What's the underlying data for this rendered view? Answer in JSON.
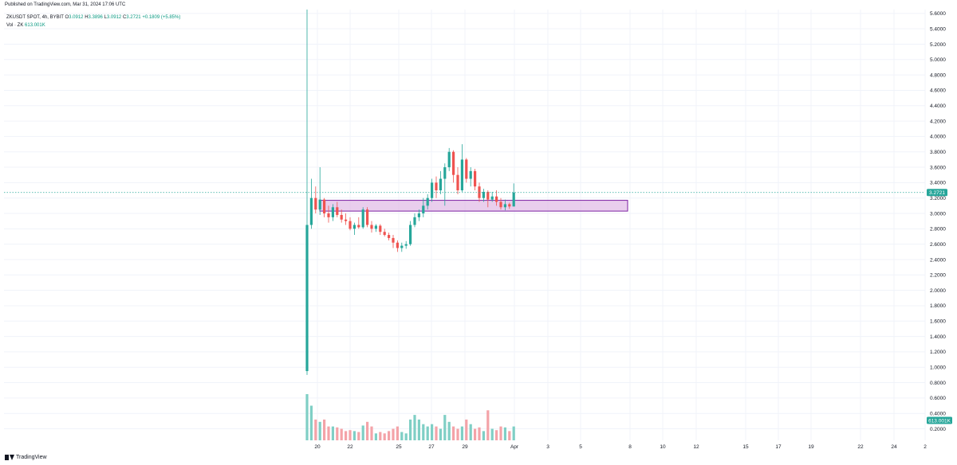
{
  "header": {
    "published": "Published on TradingView.com, Mar 31, 2024 17:06 UTC"
  },
  "legend": {
    "symbol": "ZKUSDT SPOT, 4h, BYBIT",
    "o_label": "O",
    "o_value": "3.0912",
    "h_label": "H",
    "h_value": "3.3896",
    "l_label": "L",
    "l_value": "3.0912",
    "c_label": "C",
    "c_value": "3.2721",
    "change": "+0.1809 (+5.85%)",
    "vol_label": "Vol · ZK",
    "vol_value": "613.001K"
  },
  "footer": {
    "brand": "TradingView"
  },
  "colors": {
    "up": "#26a69a",
    "down": "#ef5350",
    "vol_up": "#7fcfc5",
    "vol_down": "#f4a3a8",
    "zone_fill": "#e1bee7",
    "zone_border": "#7b1fa2",
    "price_line": "#26a69a",
    "grid": "#f0f3fa"
  },
  "chart_data": {
    "type": "candlestick",
    "symbol": "ZKUSDT",
    "timeframe": "4h",
    "yaxis": {
      "ticks": [
        "5.6000",
        "5.4000",
        "5.2000",
        "5.0000",
        "4.8000",
        "4.6000",
        "4.4000",
        "4.2000",
        "4.0000",
        "3.8000",
        "3.6000",
        "3.4000",
        "3.2000",
        "3.0000",
        "2.8000",
        "2.6000",
        "2.4000",
        "2.2000",
        "2.0000",
        "1.8000",
        "1.6000",
        "1.4000",
        "1.2000",
        "1.0000",
        "0.8000",
        "0.6000",
        "0.4000",
        "0.2000"
      ],
      "range": [
        0.05,
        5.65
      ]
    },
    "xaxis": {
      "ticks": [
        "20",
        "22",
        "25",
        "27",
        "29",
        "Apr",
        "3",
        "5",
        "8",
        "10",
        "12",
        "15",
        "17",
        "19",
        "22",
        "24",
        "2"
      ]
    },
    "last_price": {
      "value": 3.2721,
      "label": "3.2721"
    },
    "volume_label": "613.001K",
    "zone": {
      "low": 3.03,
      "high": 3.17
    },
    "candles": [
      {
        "o": 0.95,
        "h": 5.65,
        "l": 0.9,
        "c": 2.85,
        "v": 1.0
      },
      {
        "o": 2.85,
        "h": 3.45,
        "l": 2.8,
        "c": 3.2,
        "v": 0.75
      },
      {
        "o": 3.2,
        "h": 3.35,
        "l": 3.0,
        "c": 3.05,
        "v": 0.45
      },
      {
        "o": 3.05,
        "h": 3.6,
        "l": 2.98,
        "c": 3.18,
        "v": 0.4
      },
      {
        "o": 3.18,
        "h": 3.2,
        "l": 2.95,
        "c": 3.0,
        "v": 0.45
      },
      {
        "o": 3.0,
        "h": 3.1,
        "l": 2.88,
        "c": 2.95,
        "v": 0.3
      },
      {
        "o": 2.95,
        "h": 3.12,
        "l": 2.9,
        "c": 3.08,
        "v": 0.3
      },
      {
        "o": 3.08,
        "h": 3.15,
        "l": 2.95,
        "c": 2.98,
        "v": 0.28
      },
      {
        "o": 2.98,
        "h": 3.05,
        "l": 2.88,
        "c": 2.92,
        "v": 0.25
      },
      {
        "o": 2.92,
        "h": 3.0,
        "l": 2.85,
        "c": 2.9,
        "v": 0.2
      },
      {
        "o": 2.9,
        "h": 2.95,
        "l": 2.78,
        "c": 2.8,
        "v": 0.22
      },
      {
        "o": 2.8,
        "h": 2.88,
        "l": 2.72,
        "c": 2.85,
        "v": 0.2
      },
      {
        "o": 2.85,
        "h": 2.95,
        "l": 2.8,
        "c": 2.82,
        "v": 0.18
      },
      {
        "o": 2.82,
        "h": 3.08,
        "l": 2.8,
        "c": 3.05,
        "v": 0.32
      },
      {
        "o": 3.05,
        "h": 3.08,
        "l": 2.82,
        "c": 2.85,
        "v": 0.4
      },
      {
        "o": 2.85,
        "h": 2.9,
        "l": 2.75,
        "c": 2.8,
        "v": 0.3
      },
      {
        "o": 2.8,
        "h": 2.86,
        "l": 2.76,
        "c": 2.84,
        "v": 0.15
      },
      {
        "o": 2.84,
        "h": 2.86,
        "l": 2.72,
        "c": 2.76,
        "v": 0.18
      },
      {
        "o": 2.76,
        "h": 2.8,
        "l": 2.7,
        "c": 2.72,
        "v": 0.15
      },
      {
        "o": 2.72,
        "h": 2.75,
        "l": 2.65,
        "c": 2.68,
        "v": 0.2
      },
      {
        "o": 2.68,
        "h": 2.72,
        "l": 2.55,
        "c": 2.62,
        "v": 0.25
      },
      {
        "o": 2.62,
        "h": 2.65,
        "l": 2.5,
        "c": 2.55,
        "v": 0.3
      },
      {
        "o": 2.55,
        "h": 2.62,
        "l": 2.5,
        "c": 2.58,
        "v": 0.18
      },
      {
        "o": 2.58,
        "h": 2.64,
        "l": 2.54,
        "c": 2.6,
        "v": 0.15
      },
      {
        "o": 2.6,
        "h": 2.9,
        "l": 2.58,
        "c": 2.85,
        "v": 0.45
      },
      {
        "o": 2.85,
        "h": 3.0,
        "l": 2.82,
        "c": 2.95,
        "v": 0.55
      },
      {
        "o": 2.95,
        "h": 3.05,
        "l": 2.9,
        "c": 3.0,
        "v": 0.45
      },
      {
        "o": 3.0,
        "h": 3.2,
        "l": 2.95,
        "c": 3.1,
        "v": 0.35
      },
      {
        "o": 3.1,
        "h": 3.25,
        "l": 3.05,
        "c": 3.2,
        "v": 0.3
      },
      {
        "o": 3.2,
        "h": 3.45,
        "l": 3.15,
        "c": 3.4,
        "v": 0.35
      },
      {
        "o": 3.4,
        "h": 3.48,
        "l": 3.2,
        "c": 3.3,
        "v": 0.3
      },
      {
        "o": 3.3,
        "h": 3.55,
        "l": 3.25,
        "c": 3.45,
        "v": 0.25
      },
      {
        "o": 3.45,
        "h": 3.65,
        "l": 3.1,
        "c": 3.6,
        "v": 0.55
      },
      {
        "o": 3.6,
        "h": 3.85,
        "l": 3.55,
        "c": 3.8,
        "v": 0.4
      },
      {
        "o": 3.8,
        "h": 3.82,
        "l": 3.4,
        "c": 3.5,
        "v": 0.3
      },
      {
        "o": 3.5,
        "h": 3.6,
        "l": 3.25,
        "c": 3.3,
        "v": 0.25
      },
      {
        "o": 3.3,
        "h": 3.9,
        "l": 3.28,
        "c": 3.7,
        "v": 0.3
      },
      {
        "o": 3.7,
        "h": 3.72,
        "l": 3.4,
        "c": 3.45,
        "v": 0.45
      },
      {
        "o": 3.45,
        "h": 3.6,
        "l": 3.35,
        "c": 3.55,
        "v": 0.35
      },
      {
        "o": 3.55,
        "h": 3.58,
        "l": 3.3,
        "c": 3.35,
        "v": 0.25
      },
      {
        "o": 3.35,
        "h": 3.4,
        "l": 3.15,
        "c": 3.2,
        "v": 0.28
      },
      {
        "o": 3.2,
        "h": 3.32,
        "l": 3.15,
        "c": 3.28,
        "v": 0.2
      },
      {
        "o": 3.28,
        "h": 3.3,
        "l": 3.08,
        "c": 3.18,
        "v": 0.65
      },
      {
        "o": 3.18,
        "h": 3.28,
        "l": 3.15,
        "c": 3.22,
        "v": 0.25
      },
      {
        "o": 3.22,
        "h": 3.3,
        "l": 3.1,
        "c": 3.15,
        "v": 0.22
      },
      {
        "o": 3.15,
        "h": 3.2,
        "l": 3.05,
        "c": 3.08,
        "v": 0.3
      },
      {
        "o": 3.08,
        "h": 3.18,
        "l": 3.04,
        "c": 3.12,
        "v": 0.28
      },
      {
        "o": 3.12,
        "h": 3.14,
        "l": 3.06,
        "c": 3.09,
        "v": 0.2
      },
      {
        "o": 3.09,
        "h": 3.39,
        "l": 3.09,
        "c": 3.27,
        "v": 0.3
      }
    ]
  }
}
